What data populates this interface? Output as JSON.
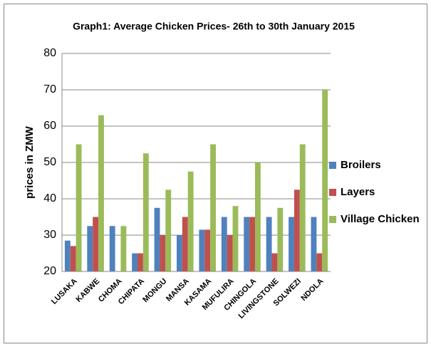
{
  "chart_data": {
    "type": "bar",
    "title": "Graph1: Average Chicken Prices- 26th to 30th January 2015",
    "y_label": "prices in ZMW",
    "categories": [
      "LUSAKA",
      "KABWE",
      "CHOMA",
      "CHIPATA",
      "MONGU",
      "MANSA",
      "KASAMA",
      "MUFULIRA",
      "CHINGOLA",
      "LIVINGSTONE",
      "SOLWEZI",
      "NDOLA"
    ],
    "series": [
      {
        "name": "Broilers",
        "color": "#4f81bd",
        "values": [
          28.5,
          32.5,
          32.5,
          25,
          37.5,
          30,
          31.5,
          35,
          35,
          35,
          35,
          35
        ]
      },
      {
        "name": "Layers",
        "color": "#c0504d",
        "values": [
          27,
          35,
          null,
          25,
          30,
          35,
          31.5,
          30,
          35,
          25,
          42.5,
          25
        ]
      },
      {
        "name": "Village Chicken",
        "color": "#9bbb59",
        "values": [
          55,
          63,
          32.5,
          52.5,
          42.5,
          47.5,
          55,
          38,
          50,
          37.5,
          55,
          70
        ]
      }
    ],
    "ylim": [
      20,
      80
    ],
    "yticks": [
      20,
      30,
      40,
      50,
      60,
      70,
      80
    ],
    "grid": true,
    "legend": "right"
  }
}
